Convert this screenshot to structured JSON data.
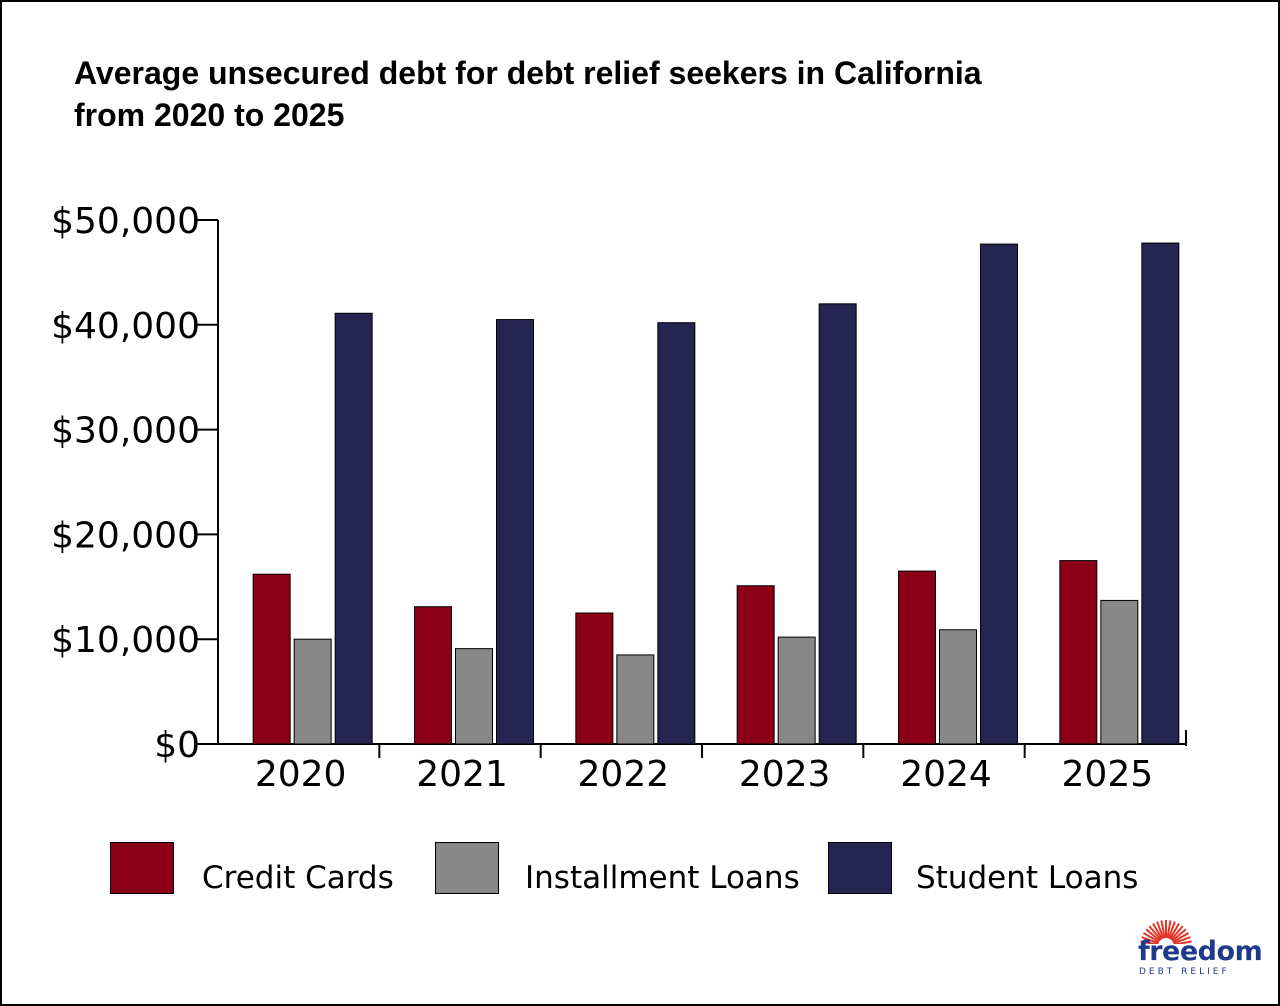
{
  "colors": {
    "credit_cards": "#8b0017",
    "installment_loans": "#888888",
    "student_loans": "#262551",
    "logo_blue": "#1f3a8a",
    "logo_red": "#e4342a"
  },
  "logo": {
    "word": "freedom",
    "sub": "DEBT RELIEF",
    "icon": "sunburst-icon"
  },
  "chart_data": {
    "type": "bar",
    "title": "Average unsecured debt for debt relief seekers in California from 2020 to 2025",
    "title_lines": [
      "Average unsecured debt for debt relief seekers in California",
      "from 2020 to 2025"
    ],
    "categories": [
      "2020",
      "2021",
      "2022",
      "2023",
      "2024",
      "2025"
    ],
    "series": [
      {
        "name": "Credit Cards",
        "values": [
          16200,
          13100,
          12500,
          15100,
          16500,
          17500
        ]
      },
      {
        "name": "Installment Loans",
        "values": [
          10000,
          9100,
          8500,
          10200,
          10900,
          13700
        ]
      },
      {
        "name": "Student Loans",
        "values": [
          41100,
          40500,
          40200,
          42000,
          47700,
          47800
        ]
      }
    ],
    "ylim": [
      0,
      50000
    ],
    "yticks": [
      0,
      10000,
      20000,
      30000,
      40000,
      50000
    ],
    "ytick_labels": [
      "$0",
      "$10,000",
      "$20,000",
      "$30,000",
      "$40,000",
      "$50,000"
    ],
    "xlabel": "",
    "ylabel": "",
    "grid": false,
    "legend_position": "bottom"
  }
}
